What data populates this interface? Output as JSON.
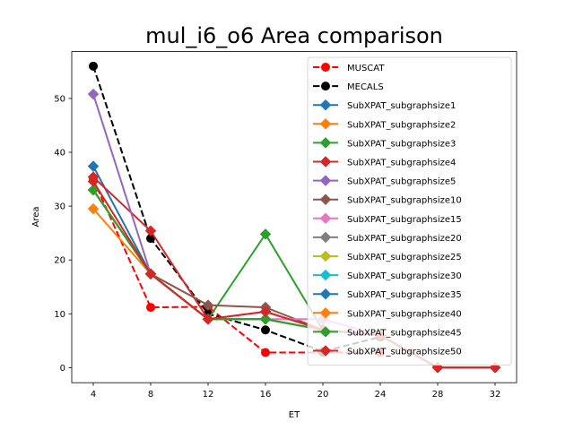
{
  "chart_data": {
    "type": "line",
    "title": "mul_i6_o6 Area comparison",
    "xlabel": "ET",
    "ylabel": "Area",
    "xticks": [
      4,
      8,
      12,
      16,
      20,
      24,
      28,
      32
    ],
    "yticks": [
      0,
      10,
      20,
      30,
      40,
      50
    ],
    "xlim": [
      2.5,
      33.5
    ],
    "ylim": [
      -2.8,
      58.7
    ],
    "grid": false,
    "legend_position": "top-right",
    "series": [
      {
        "name": "MUSCAT",
        "color": "#ff0000",
        "marker": "circle",
        "dashed": true,
        "x": [
          4,
          8,
          12,
          16,
          20,
          24
        ],
        "y": [
          35.0,
          11.2,
          11.3,
          2.8,
          2.8,
          2.8
        ]
      },
      {
        "name": "MECALS",
        "color": "#000000",
        "marker": "circle",
        "dashed": true,
        "x": [
          4,
          8,
          12,
          16,
          20,
          24
        ],
        "y": [
          56.0,
          24.0,
          10.0,
          7.0,
          3.0,
          5.7
        ]
      },
      {
        "name": "SubXPAT_subgraphsize1",
        "color": "#1f77b4",
        "marker": "diamond",
        "dashed": false,
        "x": [
          4,
          8,
          12,
          16,
          20,
          24,
          28,
          32
        ],
        "y": [
          37.4,
          17.4,
          9.0,
          9.0,
          7.0,
          6.0,
          0,
          0
        ]
      },
      {
        "name": "SubXPAT_subgraphsize2",
        "color": "#ff7f0e",
        "marker": "diamond",
        "dashed": false,
        "x": [
          4,
          8,
          12,
          16,
          20,
          24,
          28,
          32
        ],
        "y": [
          29.5,
          17.4,
          9.0,
          9.0,
          7.0,
          6.0,
          0,
          0
        ]
      },
      {
        "name": "SubXPAT_subgraphsize3",
        "color": "#2ca02c",
        "marker": "diamond",
        "dashed": false,
        "x": [
          4,
          8,
          12,
          16,
          20,
          24,
          28,
          32
        ],
        "y": [
          33.0,
          17.4,
          9.0,
          24.8,
          7.0,
          6.0,
          0,
          0
        ]
      },
      {
        "name": "SubXPAT_subgraphsize4",
        "color": "#d62728",
        "marker": "diamond",
        "dashed": false,
        "x": [
          4,
          8,
          12,
          16,
          20,
          24,
          28,
          32
        ],
        "y": [
          35.4,
          25.4,
          9.0,
          10.4,
          7.0,
          6.0,
          0,
          0
        ]
      },
      {
        "name": "SubXPAT_subgraphsize5",
        "color": "#9467bd",
        "marker": "diamond",
        "dashed": false,
        "x": [
          4,
          8,
          12,
          16,
          20,
          24,
          28,
          32
        ],
        "y": [
          50.8,
          17.4,
          9.0,
          9.0,
          7.0,
          6.0,
          0,
          0
        ]
      },
      {
        "name": "SubXPAT_subgraphsize10",
        "color": "#8c564b",
        "marker": "diamond",
        "dashed": false,
        "x": [
          4,
          8,
          12,
          16,
          20,
          24,
          28,
          32
        ],
        "y": [
          33.0,
          17.4,
          11.6,
          11.2,
          7.0,
          6.0,
          0,
          0
        ]
      },
      {
        "name": "SubXPAT_subgraphsize15",
        "color": "#e377c2",
        "marker": "diamond",
        "dashed": false,
        "x": [
          4,
          8,
          12,
          16,
          20,
          24,
          28,
          32
        ],
        "y": [
          33.0,
          17.4,
          9.0,
          9.0,
          9.0,
          6.0,
          0,
          0
        ]
      },
      {
        "name": "SubXPAT_subgraphsize20",
        "color": "#7f7f7f",
        "marker": "diamond",
        "dashed": false,
        "x": [
          4,
          8,
          12,
          16,
          20,
          24,
          28,
          32
        ],
        "y": [
          33.0,
          17.4,
          9.0,
          9.0,
          7.0,
          6.0,
          0,
          0
        ]
      },
      {
        "name": "SubXPAT_subgraphsize25",
        "color": "#bcbd22",
        "marker": "diamond",
        "dashed": false,
        "x": [
          4,
          8,
          12,
          16,
          20,
          24,
          28,
          32
        ],
        "y": [
          33.0,
          17.4,
          9.0,
          9.0,
          7.0,
          6.0,
          0,
          0
        ]
      },
      {
        "name": "SubXPAT_subgraphsize30",
        "color": "#17becf",
        "marker": "diamond",
        "dashed": false,
        "x": [
          4,
          8,
          12,
          16,
          20,
          24,
          28,
          32
        ],
        "y": [
          33.0,
          17.4,
          9.0,
          9.0,
          7.0,
          6.0,
          0,
          0
        ]
      },
      {
        "name": "SubXPAT_subgraphsize35",
        "color": "#1f77b4",
        "marker": "diamond",
        "dashed": false,
        "x": [
          4,
          8,
          12,
          16,
          20,
          24,
          28,
          32
        ],
        "y": [
          33.0,
          17.4,
          9.0,
          9.0,
          7.0,
          6.0,
          0,
          0
        ]
      },
      {
        "name": "SubXPAT_subgraphsize40",
        "color": "#ff7f0e",
        "marker": "diamond",
        "dashed": false,
        "x": [
          4,
          8,
          12,
          16,
          20,
          24,
          28,
          32
        ],
        "y": [
          33.0,
          17.4,
          9.0,
          9.0,
          7.0,
          6.0,
          0,
          0
        ]
      },
      {
        "name": "SubXPAT_subgraphsize45",
        "color": "#2ca02c",
        "marker": "diamond",
        "dashed": false,
        "x": [
          4,
          8,
          12,
          16,
          20,
          24,
          28,
          32
        ],
        "y": [
          33.0,
          17.4,
          9.0,
          9.0,
          7.0,
          6.0,
          0,
          0
        ]
      },
      {
        "name": "SubXPAT_subgraphsize50",
        "color": "#d62728",
        "marker": "diamond",
        "dashed": false,
        "x": [
          4,
          8,
          12,
          16,
          20,
          24,
          28,
          32
        ],
        "y": [
          34.6,
          17.4,
          9.0,
          10.4,
          7.0,
          6.0,
          0,
          0
        ]
      }
    ]
  }
}
